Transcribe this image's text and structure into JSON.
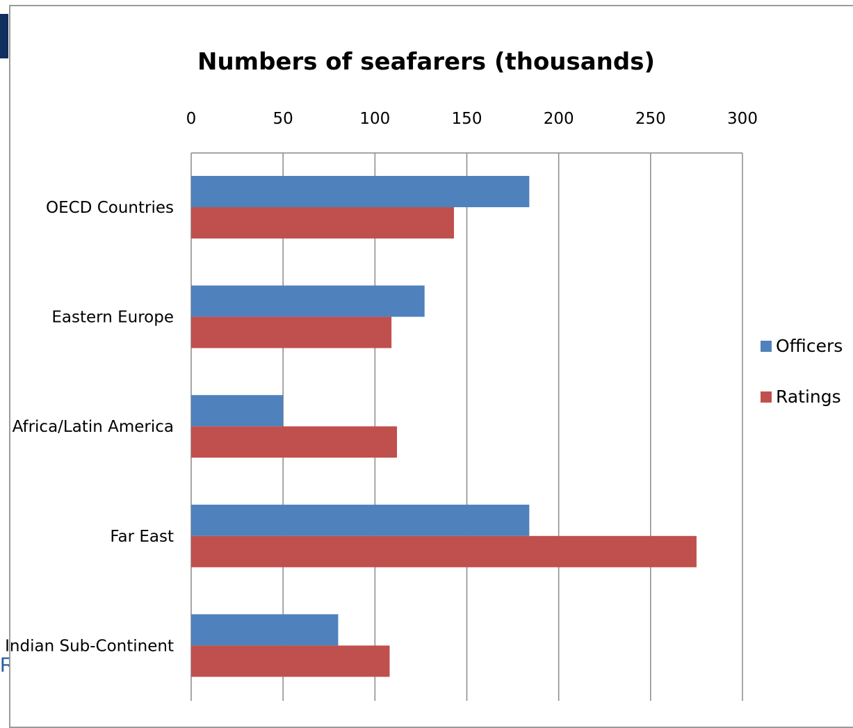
{
  "chart_data": {
    "type": "bar",
    "orientation": "horizontal",
    "title": "Numbers of seafarers (thousands)",
    "categories": [
      "OECD Countries",
      "Eastern Europe",
      "Africa/Latin America",
      "Far East",
      "Indian Sub-Continent"
    ],
    "series": [
      {
        "name": "Officers",
        "color": "#4f81bd",
        "values": [
          184,
          127,
          50,
          184,
          80
        ]
      },
      {
        "name": "Ratings",
        "color": "#c0504d",
        "values": [
          143,
          109,
          112,
          275,
          108
        ]
      }
    ],
    "xlim": [
      0,
      300
    ],
    "xticks": [
      0,
      50,
      100,
      150,
      200,
      250,
      300
    ],
    "x_axis_position": "top",
    "grid": true,
    "legend_position": "right"
  },
  "fragments": {
    "stray_letter": "R"
  }
}
